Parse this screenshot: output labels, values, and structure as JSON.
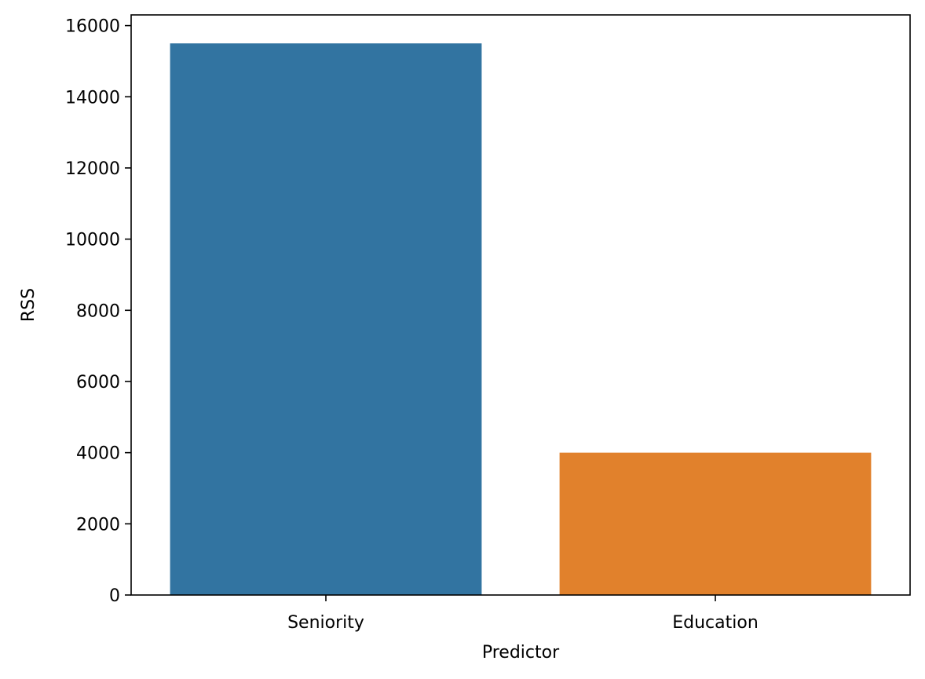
{
  "chart_data": {
    "type": "bar",
    "title": "",
    "xlabel": "Predictor",
    "ylabel": "RSS",
    "categories": [
      "Seniority",
      "Education"
    ],
    "values": [
      15500,
      4000
    ],
    "colors": [
      "#3274a1",
      "#e1812c"
    ],
    "ylim": [
      0,
      16300
    ],
    "yticks": [
      0,
      2000,
      4000,
      6000,
      8000,
      10000,
      12000,
      14000,
      16000
    ],
    "grid": false,
    "legend": "none"
  }
}
